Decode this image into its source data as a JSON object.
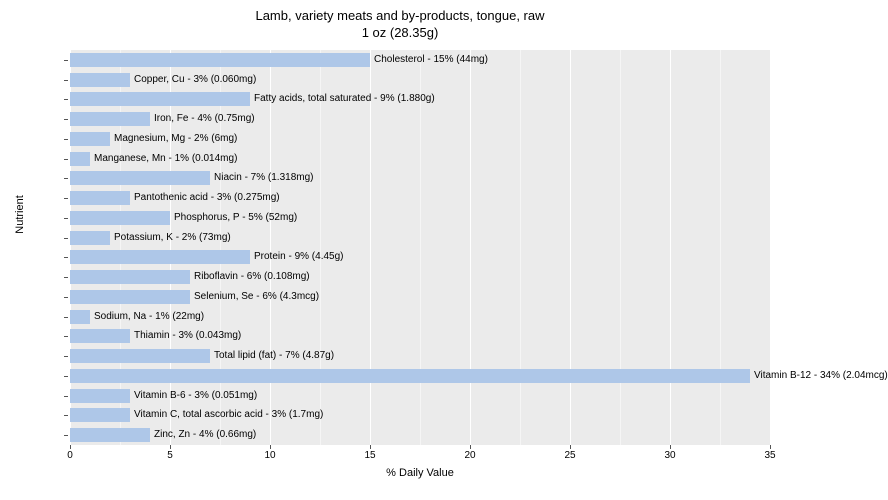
{
  "chart": {
    "type": "bar",
    "title_line1": "Lamb, variety meats and by-products, tongue, raw",
    "title_line2": "1 oz (28.35g)",
    "title_fontsize": 13,
    "xlabel": "% Daily Value",
    "ylabel": "Nutrient",
    "label_fontsize": 11,
    "xlim": [
      0,
      35
    ],
    "xtick_step": 5,
    "xticks": [
      0,
      5,
      10,
      15,
      20,
      25,
      30,
      35
    ],
    "background_color": "#ebebeb",
    "grid_color": "#ffffff",
    "minor_grid_color": "#f5f5f5",
    "bar_color": "#aec7e8",
    "bar_label_fontsize": 10,
    "tick_label_fontsize": 10,
    "nutrients": [
      {
        "label": "Cholesterol - 15% (44mg)",
        "value": 15
      },
      {
        "label": "Copper, Cu - 3% (0.060mg)",
        "value": 3
      },
      {
        "label": "Fatty acids, total saturated - 9% (1.880g)",
        "value": 9
      },
      {
        "label": "Iron, Fe - 4% (0.75mg)",
        "value": 4
      },
      {
        "label": "Magnesium, Mg - 2% (6mg)",
        "value": 2
      },
      {
        "label": "Manganese, Mn - 1% (0.014mg)",
        "value": 1
      },
      {
        "label": "Niacin - 7% (1.318mg)",
        "value": 7
      },
      {
        "label": "Pantothenic acid - 3% (0.275mg)",
        "value": 3
      },
      {
        "label": "Phosphorus, P - 5% (52mg)",
        "value": 5
      },
      {
        "label": "Potassium, K - 2% (73mg)",
        "value": 2
      },
      {
        "label": "Protein - 9% (4.45g)",
        "value": 9
      },
      {
        "label": "Riboflavin - 6% (0.108mg)",
        "value": 6
      },
      {
        "label": "Selenium, Se - 6% (4.3mcg)",
        "value": 6
      },
      {
        "label": "Sodium, Na - 1% (22mg)",
        "value": 1
      },
      {
        "label": "Thiamin - 3% (0.043mg)",
        "value": 3
      },
      {
        "label": "Total lipid (fat) - 7% (4.87g)",
        "value": 7
      },
      {
        "label": "Vitamin B-12 - 34% (2.04mcg)",
        "value": 34
      },
      {
        "label": "Vitamin B-6 - 3% (0.051mg)",
        "value": 3
      },
      {
        "label": "Vitamin C, total ascorbic acid - 3% (1.7mg)",
        "value": 3
      },
      {
        "label": "Zinc, Zn - 4% (0.66mg)",
        "value": 4
      }
    ]
  }
}
